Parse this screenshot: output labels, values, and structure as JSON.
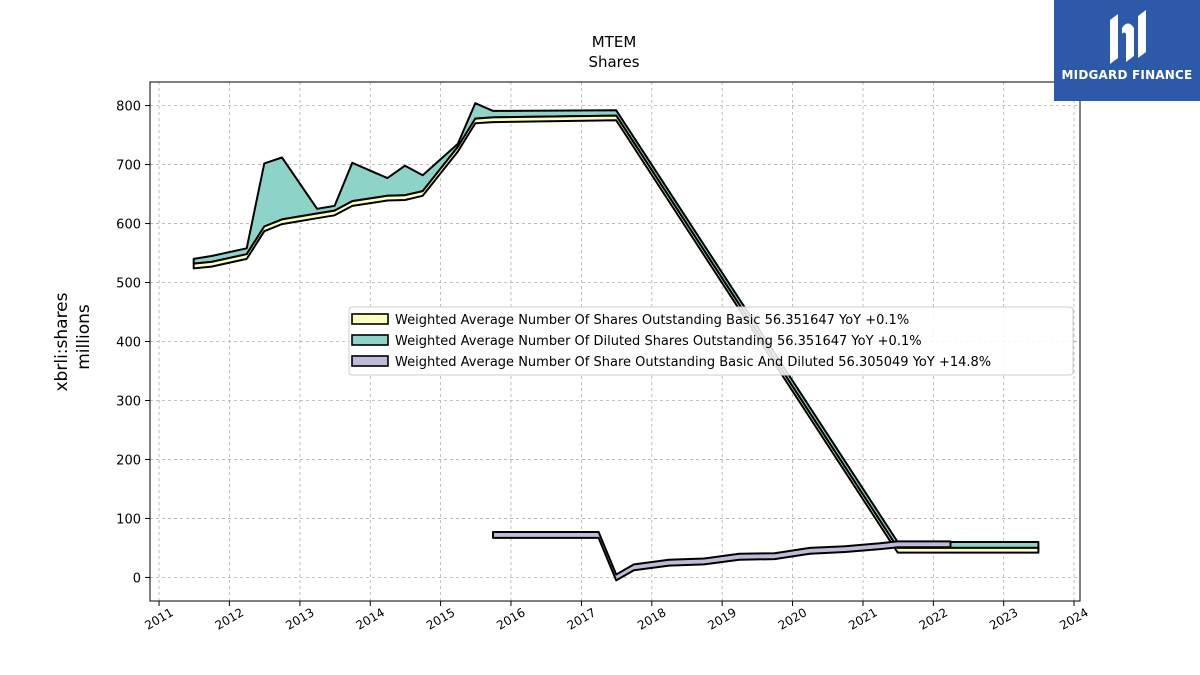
{
  "chart_data": {
    "type": "area",
    "title": "MTEM",
    "subtitle": "Shares",
    "ylabel": "xbrli:shares",
    "ylabel2": "millions",
    "ylim": [
      -40,
      840
    ],
    "xlim": [
      "2010-11-15",
      "2024-02-01"
    ],
    "yticks": [
      0,
      100,
      200,
      300,
      400,
      500,
      600,
      700,
      800
    ],
    "xticks": [
      "2011",
      "2012",
      "2013",
      "2014",
      "2015",
      "2016",
      "2017",
      "2018",
      "2019",
      "2020",
      "2021",
      "2022",
      "2023",
      "2024"
    ],
    "grid": true,
    "legend_position": "center-right",
    "series": [
      {
        "name": "Weighted Average Number Of Shares Outstanding Basic",
        "legend_label": "Weighted Average Number Of Shares Outstanding Basic  56.351647 YoY +0.1%",
        "color": "#ffffbf",
        "points": [
          [
            "2011-06-30",
            532
          ],
          [
            "2011-09-30",
            535
          ],
          [
            "2012-03-31",
            548
          ],
          [
            "2012-06-30",
            595
          ],
          [
            "2012-09-30",
            607
          ],
          [
            "2013-03-31",
            617
          ],
          [
            "2013-06-30",
            622
          ],
          [
            "2013-09-30",
            638
          ],
          [
            "2014-03-31",
            647
          ],
          [
            "2014-06-30",
            648
          ],
          [
            "2014-09-30",
            655
          ],
          [
            "2015-03-31",
            730
          ],
          [
            "2015-06-30",
            778
          ],
          [
            "2015-09-30",
            780
          ],
          [
            "2017-06-30",
            783
          ],
          [
            "2021-06-30",
            50
          ],
          [
            "2023-06-30",
            50
          ]
        ]
      },
      {
        "name": "Weighted Average Number Of Diluted Shares Outstanding",
        "legend_label": "Weighted Average Number Of Diluted Shares Outstanding  56.351647 YoY +0.1%",
        "color": "#8dd3c7",
        "points": [
          [
            "2011-06-30",
            540
          ],
          [
            "2011-09-30",
            545
          ],
          [
            "2012-03-31",
            558
          ],
          [
            "2012-06-30",
            702
          ],
          [
            "2012-09-30",
            712
          ],
          [
            "2013-03-31",
            625
          ],
          [
            "2013-06-30",
            630
          ],
          [
            "2013-09-30",
            703
          ],
          [
            "2014-03-31",
            677
          ],
          [
            "2014-06-30",
            698
          ],
          [
            "2014-09-30",
            682
          ],
          [
            "2015-03-31",
            735
          ],
          [
            "2015-06-30",
            804
          ],
          [
            "2015-09-30",
            791
          ],
          [
            "2017-06-30",
            792
          ],
          [
            "2021-06-30",
            60
          ],
          [
            "2023-06-30",
            60
          ]
        ]
      },
      {
        "name": "Weighted Average Number Of Share Outstanding Basic And Diluted",
        "legend_label": "Weighted Average Number Of Share Outstanding Basic And Diluted  56.305049 YoY +14.8%",
        "color": "#bebada",
        "points": [
          [
            "2015-09-30",
            67
          ],
          [
            "2017-03-31",
            67
          ],
          [
            "2017-06-30",
            -5
          ],
          [
            "2017-09-30",
            12
          ],
          [
            "2018-03-31",
            20
          ],
          [
            "2018-09-30",
            22
          ],
          [
            "2019-03-31",
            30
          ],
          [
            "2019-09-30",
            31
          ],
          [
            "2020-03-31",
            40
          ],
          [
            "2020-09-30",
            43
          ],
          [
            "2021-03-31",
            48
          ],
          [
            "2021-06-30",
            51
          ],
          [
            "2022-03-31",
            51
          ]
        ],
        "upper_points": [
          [
            "2015-09-30",
            77
          ],
          [
            "2017-03-31",
            77
          ],
          [
            "2017-06-30",
            5
          ],
          [
            "2017-09-30",
            22
          ],
          [
            "2018-03-31",
            30
          ],
          [
            "2018-09-30",
            32
          ],
          [
            "2019-03-31",
            40
          ],
          [
            "2019-09-30",
            41
          ],
          [
            "2020-03-31",
            50
          ],
          [
            "2020-09-30",
            53
          ],
          [
            "2021-03-31",
            58
          ],
          [
            "2021-06-30",
            61
          ],
          [
            "2022-03-31",
            61
          ]
        ]
      }
    ]
  },
  "logo": {
    "text": "MIDGARD FINANCE"
  }
}
